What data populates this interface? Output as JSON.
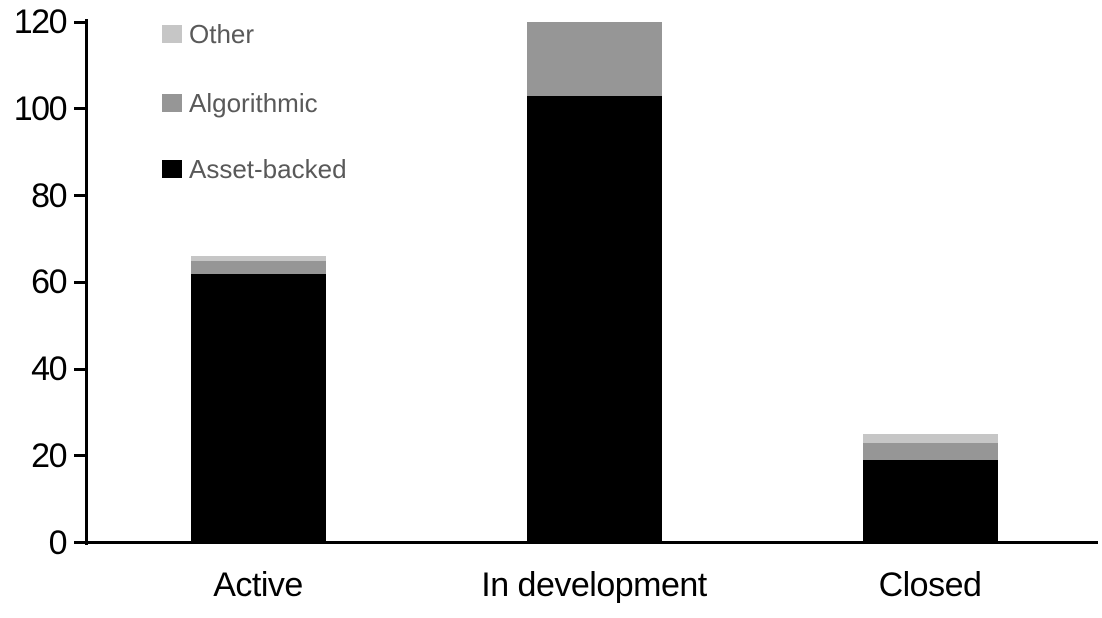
{
  "chart_data": {
    "type": "bar",
    "stacked": true,
    "title": "",
    "xlabel": "",
    "ylabel": "",
    "categories": [
      "Active",
      "In development",
      "Closed"
    ],
    "series": [
      {
        "name": "Asset-backed",
        "color": "#000000",
        "values": [
          62,
          103,
          19
        ]
      },
      {
        "name": "Algorithmic",
        "color": "#969696",
        "values": [
          3,
          17,
          4
        ]
      },
      {
        "name": "Other",
        "color": "#c6c6c6",
        "values": [
          1,
          0,
          2
        ]
      }
    ],
    "totals": [
      66,
      120,
      25
    ],
    "ylim": [
      0,
      120
    ],
    "yticks": [
      0,
      20,
      40,
      60,
      80,
      100,
      120
    ],
    "grid": false,
    "legend_position": "top-left",
    "legend_order": [
      "Other",
      "Algorithmic",
      "Asset-backed"
    ]
  },
  "colors": {
    "axis": "#000000",
    "tick_label_text": "#000000",
    "category_label_text": "#000000",
    "legend_text": "#595959",
    "background": "#ffffff"
  }
}
